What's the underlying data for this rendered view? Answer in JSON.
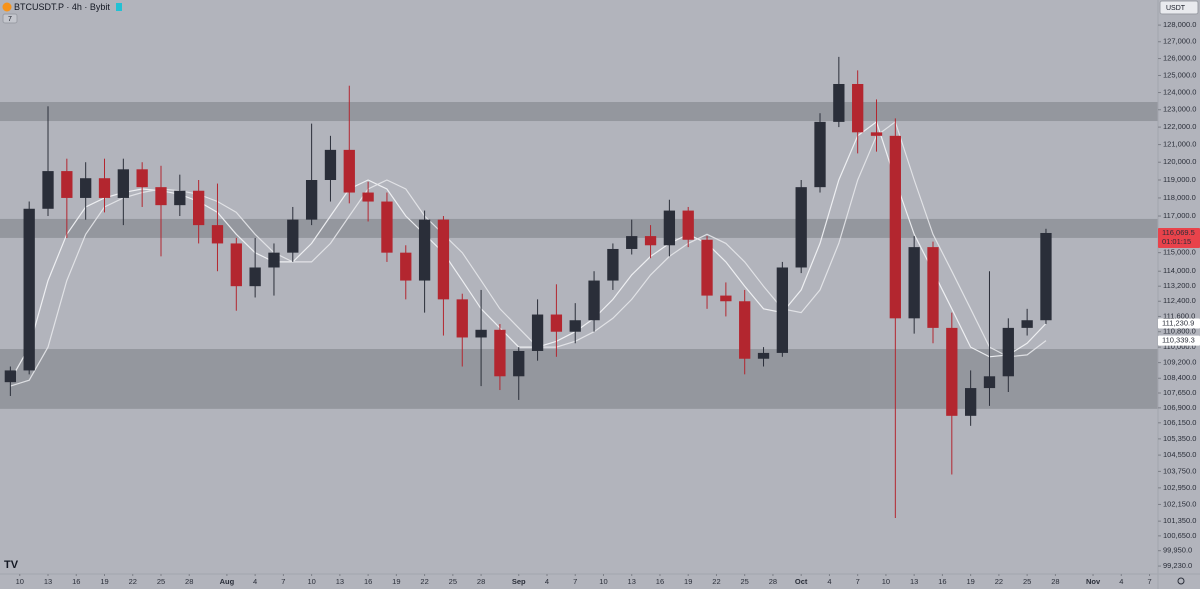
{
  "header": {
    "symbol": "BTCUSDT.P · 4h · Bybit",
    "indicator_count": "7",
    "currency": "USDT"
  },
  "chart_data": {
    "type": "candlestick",
    "log_scale": true,
    "up_color": "#2a2e39",
    "down_color": "#b3262f",
    "x": [
      -1,
      1,
      3,
      5,
      7,
      9,
      11,
      13,
      15,
      17,
      19,
      21,
      23,
      25,
      27,
      29,
      31,
      33,
      35,
      37,
      39,
      41,
      43,
      45,
      47,
      49,
      51,
      53,
      55,
      57,
      59,
      61,
      63,
      65,
      67,
      69,
      71,
      73,
      75,
      77,
      79,
      81,
      83,
      85,
      87,
      89,
      91,
      93,
      95,
      97,
      99,
      101,
      103,
      105,
      107,
      109
    ],
    "open": [
      108200,
      108800,
      117400,
      119500,
      118000,
      119100,
      118000,
      119600,
      118600,
      117600,
      118400,
      116500,
      115500,
      113200,
      114200,
      115000,
      116800,
      119000,
      120700,
      118300,
      117800,
      115000,
      113500,
      116800,
      112500,
      110500,
      110900,
      108500,
      109800,
      111700,
      110800,
      111400,
      113500,
      115200,
      115900,
      115400,
      117300,
      115700,
      112700,
      112400,
      109400,
      109700,
      114200,
      118600,
      122300,
      124500,
      121700,
      121500,
      111500,
      115300,
      111000,
      106500,
      107900,
      108500,
      111000,
      111400
    ],
    "high": [
      109000,
      117800,
      123200,
      120200,
      120000,
      120200,
      120200,
      120000,
      119800,
      119300,
      119000,
      118800,
      115800,
      115800,
      115500,
      117500,
      122200,
      121500,
      124400,
      118900,
      118300,
      115400,
      117300,
      117000,
      112800,
      113000,
      111200,
      110000,
      112500,
      113300,
      112300,
      114000,
      115500,
      116800,
      116500,
      117900,
      117500,
      115900,
      113400,
      113000,
      110000,
      114500,
      119000,
      122800,
      126100,
      125300,
      123600,
      122500,
      115900,
      115600,
      111800,
      108800,
      114000,
      111500,
      112000,
      116300
    ],
    "low": [
      107500,
      108600,
      117000,
      115800,
      116800,
      117200,
      116500,
      117500,
      114800,
      117000,
      115500,
      114000,
      111900,
      112600,
      112700,
      114500,
      116500,
      117800,
      117700,
      116700,
      114500,
      112500,
      111800,
      110600,
      109000,
      108000,
      107800,
      107300,
      109300,
      109500,
      110200,
      110800,
      113000,
      114900,
      114700,
      114800,
      115300,
      112000,
      111600,
      108600,
      109000,
      109500,
      113900,
      118300,
      122000,
      120500,
      120600,
      101500,
      110700,
      110200,
      103600,
      106000,
      107000,
      107700,
      110600,
      111200
    ],
    "close": [
      108800,
      117400,
      119500,
      118000,
      119100,
      118000,
      119600,
      118600,
      117600,
      118400,
      116500,
      115500,
      113200,
      114200,
      115000,
      116800,
      119000,
      120700,
      118300,
      117800,
      115000,
      113500,
      116800,
      112500,
      110500,
      110900,
      108500,
      109800,
      111700,
      110800,
      111400,
      113500,
      115200,
      115900,
      115400,
      117300,
      115700,
      112700,
      112400,
      109400,
      109700,
      114200,
      118600,
      122300,
      124500,
      121700,
      121500,
      111500,
      115300,
      111000,
      106500,
      107900,
      108500,
      111000,
      111400,
      116069.5
    ],
    "moving_averages": [
      {
        "color": "#f4f5f7",
        "values": [
          108300,
          110000,
          113500,
          116000,
          117500,
          118000,
          118300,
          118500,
          118400,
          118200,
          117800,
          117200,
          116000,
          115000,
          114500,
          114500,
          115500,
          117000,
          118500,
          119000,
          118500,
          117000,
          116000,
          115000,
          113500,
          112000,
          111000,
          110000,
          110000,
          110300,
          110800,
          111500,
          112500,
          113800,
          114800,
          115500,
          116000,
          115500,
          114500,
          113200,
          112000,
          111800,
          113000,
          115500,
          119000,
          121500,
          122300,
          119000,
          116000,
          114000,
          112000,
          110000,
          109500,
          109600,
          110200,
          111230.9
        ]
      },
      {
        "color": "#e6e7ea",
        "values": [
          108000,
          108300,
          110000,
          113500,
          116000,
          117500,
          118000,
          118300,
          118500,
          118400,
          118200,
          117800,
          117200,
          116000,
          115000,
          114500,
          114500,
          115500,
          117000,
          118500,
          119000,
          118500,
          117000,
          116000,
          115000,
          113500,
          112000,
          111000,
          110000,
          110000,
          110300,
          110800,
          111500,
          112500,
          113800,
          114800,
          115500,
          116000,
          115500,
          114500,
          113200,
          112000,
          111800,
          113000,
          115500,
          119000,
          121500,
          122300,
          119000,
          116000,
          114000,
          112000,
          110000,
          109500,
          109600,
          110339.3
        ]
      }
    ],
    "zones": [
      {
        "low": 122350,
        "high": 123450
      },
      {
        "low": 115800,
        "high": 116840
      },
      {
        "low": 106850,
        "high": 109900
      }
    ],
    "price_labels": [
      {
        "value": 116069.5,
        "label": "116,069.5",
        "countdown": "01:01:15",
        "color": "#e8434b"
      },
      {
        "value": 111230.9,
        "label": "111,230.9",
        "color": "#ffffff"
      },
      {
        "value": 110339.3,
        "label": "110,339.3",
        "color": "#ffffff"
      }
    ],
    "ylim": [
      98860,
      129520
    ],
    "yticks": [
      {
        "value": 128000,
        "label": "128,000.0"
      },
      {
        "value": 127000,
        "label": "127,000.0"
      },
      {
        "value": 126000,
        "label": "126,000.0"
      },
      {
        "value": 125000,
        "label": "125,000.0"
      },
      {
        "value": 124000,
        "label": "124,000.0"
      },
      {
        "value": 123000,
        "label": "123,000.0"
      },
      {
        "value": 122000,
        "label": "122,000.0"
      },
      {
        "value": 121000,
        "label": "121,000.0"
      },
      {
        "value": 120000,
        "label": "120,000.0"
      },
      {
        "value": 119000,
        "label": "119,000.0"
      },
      {
        "value": 118000,
        "label": "118,000.0"
      },
      {
        "value": 117000,
        "label": "117,000.0"
      },
      {
        "value": 115000,
        "label": "115,000.0"
      },
      {
        "value": 114000,
        "label": "114,000.0"
      },
      {
        "value": 113200,
        "label": "113,200.0"
      },
      {
        "value": 112400,
        "label": "112,400.0"
      },
      {
        "value": 111600,
        "label": "111,600.0"
      },
      {
        "value": 110800,
        "label": "110,800.0"
      },
      {
        "value": 110000,
        "label": "110,000.0"
      },
      {
        "value": 109200,
        "label": "109,200.0"
      },
      {
        "value": 108400,
        "label": "108,400.0"
      },
      {
        "value": 107650,
        "label": "107,650.0"
      },
      {
        "value": 106900,
        "label": "106,900.0"
      },
      {
        "value": 106150,
        "label": "106,150.0"
      },
      {
        "value": 105350,
        "label": "105,350.0"
      },
      {
        "value": 104550,
        "label": "104,550.0"
      },
      {
        "value": 103750,
        "label": "103,750.0"
      },
      {
        "value": 102950,
        "label": "102,950.0"
      },
      {
        "value": 102150,
        "label": "102,150.0"
      },
      {
        "value": 101350,
        "label": "101,350.0"
      },
      {
        "value": 100650,
        "label": "100,650.0"
      },
      {
        "value": 99950,
        "label": "99,950.0"
      },
      {
        "value": 99230,
        "label": "99,230.0"
      }
    ],
    "xlim": [
      -2.1,
      120.9
    ],
    "xticks": [
      {
        "value": 0,
        "label": "10"
      },
      {
        "value": 3,
        "label": "13"
      },
      {
        "value": 6,
        "label": "16"
      },
      {
        "value": 9,
        "label": "19"
      },
      {
        "value": 12,
        "label": "22"
      },
      {
        "value": 15,
        "label": "25"
      },
      {
        "value": 18,
        "label": "28"
      },
      {
        "value": 22,
        "label": "Aug"
      },
      {
        "value": 25,
        "label": "4"
      },
      {
        "value": 28,
        "label": "7"
      },
      {
        "value": 31,
        "label": "10"
      },
      {
        "value": 34,
        "label": "13"
      },
      {
        "value": 37,
        "label": "16"
      },
      {
        "value": 40,
        "label": "19"
      },
      {
        "value": 43,
        "label": "22"
      },
      {
        "value": 46,
        "label": "25"
      },
      {
        "value": 49,
        "label": "28"
      },
      {
        "value": 53,
        "label": "Sep"
      },
      {
        "value": 56,
        "label": "4"
      },
      {
        "value": 59,
        "label": "7"
      },
      {
        "value": 62,
        "label": "10"
      },
      {
        "value": 65,
        "label": "13"
      },
      {
        "value": 68,
        "label": "16"
      },
      {
        "value": 71,
        "label": "19"
      },
      {
        "value": 74,
        "label": "22"
      },
      {
        "value": 77,
        "label": "25"
      },
      {
        "value": 80,
        "label": "28"
      },
      {
        "value": 83,
        "label": "Oct"
      },
      {
        "value": 86,
        "label": "4"
      },
      {
        "value": 89,
        "label": "7"
      },
      {
        "value": 92,
        "label": "10"
      },
      {
        "value": 95,
        "label": "13"
      },
      {
        "value": 98,
        "label": "16"
      },
      {
        "value": 101,
        "label": "19"
      },
      {
        "value": 104,
        "label": "22"
      },
      {
        "value": 107,
        "label": "25"
      },
      {
        "value": 110,
        "label": "28"
      },
      {
        "value": 114,
        "label": "Nov"
      },
      {
        "value": 117,
        "label": "4"
      },
      {
        "value": 120,
        "label": "7"
      }
    ]
  }
}
